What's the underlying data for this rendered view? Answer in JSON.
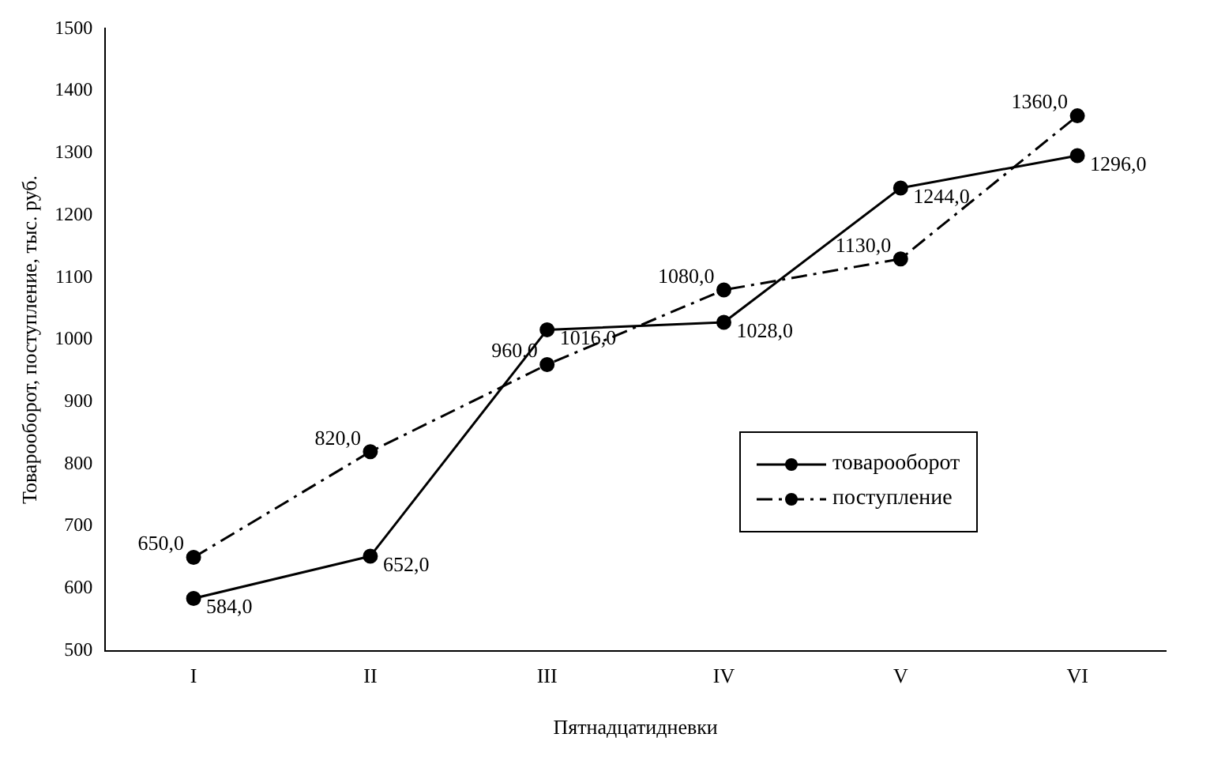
{
  "chart_data": {
    "type": "line",
    "xlabel": "Пятнадцатидневки",
    "ylabel": "Товарооборот, поступление, тыс. руб.",
    "categories": [
      "I",
      "II",
      "III",
      "IV",
      "V",
      "VI"
    ],
    "series": [
      {
        "name": "товарооборот",
        "color": "#000000",
        "values": [
          584,
          652,
          1016,
          1028,
          1244,
          1296
        ],
        "value_labels": [
          "584,0",
          "652,0",
          "1016,0",
          "1028,0",
          "1244,0",
          "1296,0"
        ],
        "line_style": "solid"
      },
      {
        "name": "поступление",
        "color": "#000000",
        "values": [
          650,
          820,
          960,
          1080,
          1130,
          1360
        ],
        "value_labels": [
          "650,0",
          "820,0",
          "960,0",
          "1080,0",
          "1130,0",
          "1360,0"
        ],
        "line_style": "dashed"
      }
    ],
    "ylim": [
      500,
      1500
    ],
    "yticks": [
      500,
      600,
      700,
      800,
      900,
      1000,
      1100,
      1200,
      1300,
      1400,
      1500
    ],
    "grid": false,
    "legend": "bottom right",
    "marker": "circle"
  }
}
